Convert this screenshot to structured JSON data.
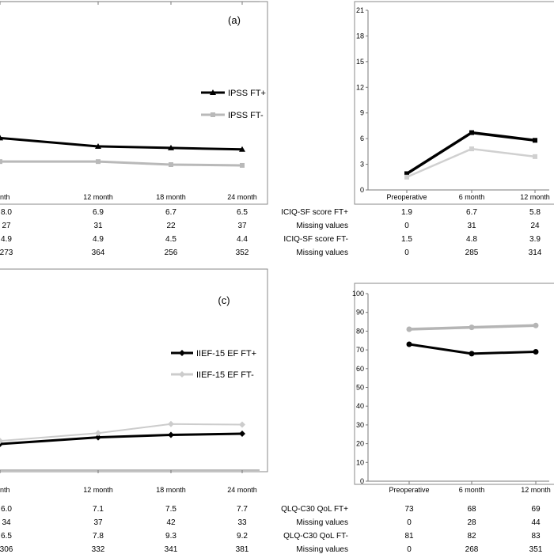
{
  "panels": [
    {
      "panel_label": "(a)",
      "chart_data": {
        "type": "line",
        "categories": [
          "month",
          "12 month",
          "18 month",
          "24 month"
        ],
        "series": [
          {
            "name": "IPSS FT+",
            "color": "#000000",
            "marker": "triangle",
            "values": [
              8.0,
              6.9,
              6.7,
              6.5
            ]
          },
          {
            "name": "IPSS FT-",
            "color": "#b9b9b9",
            "marker": "square",
            "values": [
              4.9,
              4.9,
              4.5,
              4.4
            ]
          }
        ],
        "table": [
          {
            "label": "",
            "values": [
              "8.0",
              "6.9",
              "6.7",
              "6.5"
            ]
          },
          {
            "label": "",
            "values": [
              "27",
              "31",
              "22",
              "37"
            ]
          },
          {
            "label": "",
            "values": [
              "4.9",
              "4.9",
              "4.5",
              "4.4"
            ]
          },
          {
            "label": "",
            "values": [
              "273",
              "364",
              "256",
              "352"
            ]
          }
        ],
        "legend_position": "right"
      }
    },
    {
      "panel_label": "",
      "chart_data": {
        "type": "line",
        "categories": [
          "Preoperative",
          "6 month",
          "12 month"
        ],
        "yticks": [
          "0",
          "3",
          "6",
          "9",
          "12",
          "15",
          "18",
          "21"
        ],
        "ylim": [
          0,
          21
        ],
        "series": [
          {
            "name": "ICIQ-SF score FT+",
            "color": "#000000",
            "marker": "square",
            "values": [
              1.9,
              6.7,
              5.8
            ]
          },
          {
            "name": "ICIQ-SF score FT-",
            "color": "#d0d0d0",
            "marker": "square",
            "values": [
              1.5,
              4.8,
              3.9
            ]
          }
        ],
        "table": [
          {
            "label": "ICIQ-SF score FT+",
            "values": [
              "1.9",
              "6.7",
              "5.8"
            ]
          },
          {
            "label": "Missing values",
            "values": [
              "0",
              "31",
              "24"
            ]
          },
          {
            "label": "ICIQ-SF score FT-",
            "values": [
              "1.5",
              "4.8",
              "3.9"
            ]
          },
          {
            "label": "Missing values",
            "values": [
              "0",
              "285",
              "314"
            ]
          }
        ]
      }
    },
    {
      "panel_label": "(c)",
      "chart_data": {
        "type": "line",
        "categories": [
          "month",
          "12 month",
          "18 month",
          "24 month"
        ],
        "series": [
          {
            "name": "IIEF-15 EF FT+",
            "color": "#000000",
            "marker": "diamond",
            "values": [
              6.0,
              7.1,
              7.5,
              7.7
            ]
          },
          {
            "name": "IIEF-15 EF FT-",
            "color": "#cccccc",
            "marker": "diamond",
            "values": [
              6.5,
              7.8,
              9.3,
              9.2
            ]
          }
        ],
        "table": [
          {
            "label": "",
            "values": [
              "6.0",
              "7.1",
              "7.5",
              "7.7"
            ]
          },
          {
            "label": "",
            "values": [
              "34",
              "37",
              "42",
              "33"
            ]
          },
          {
            "label": "",
            "values": [
              "6.5",
              "7.8",
              "9.3",
              "9.2"
            ]
          },
          {
            "label": "",
            "values": [
              "306",
              "332",
              "341",
              "381"
            ]
          }
        ],
        "legend_position": "right"
      }
    },
    {
      "panel_label": "",
      "chart_data": {
        "type": "line",
        "categories": [
          "Preoperative",
          "6 month",
          "12 month"
        ],
        "yticks": [
          "0",
          "10",
          "20",
          "30",
          "40",
          "50",
          "60",
          "70",
          "80",
          "90",
          "100"
        ],
        "ylim": [
          0,
          100
        ],
        "series": [
          {
            "name": "QLQ-C30 QoL FT+",
            "color": "#000000",
            "marker": "circle",
            "values": [
              73,
              68,
              69
            ]
          },
          {
            "name": "QLQ-C30 QoL FT-",
            "color": "#b5b5b5",
            "marker": "circle",
            "values": [
              81,
              82,
              83
            ]
          }
        ],
        "table": [
          {
            "label": "QLQ-C30 QoL FT+",
            "values": [
              "73",
              "68",
              "69"
            ]
          },
          {
            "label": "Missing values",
            "values": [
              "0",
              "28",
              "44"
            ]
          },
          {
            "label": "QLQ-C30 QoL FT-",
            "values": [
              "81",
              "82",
              "83"
            ]
          },
          {
            "label": "Missing values",
            "values": [
              "0",
              "268",
              "351"
            ]
          }
        ]
      }
    }
  ]
}
